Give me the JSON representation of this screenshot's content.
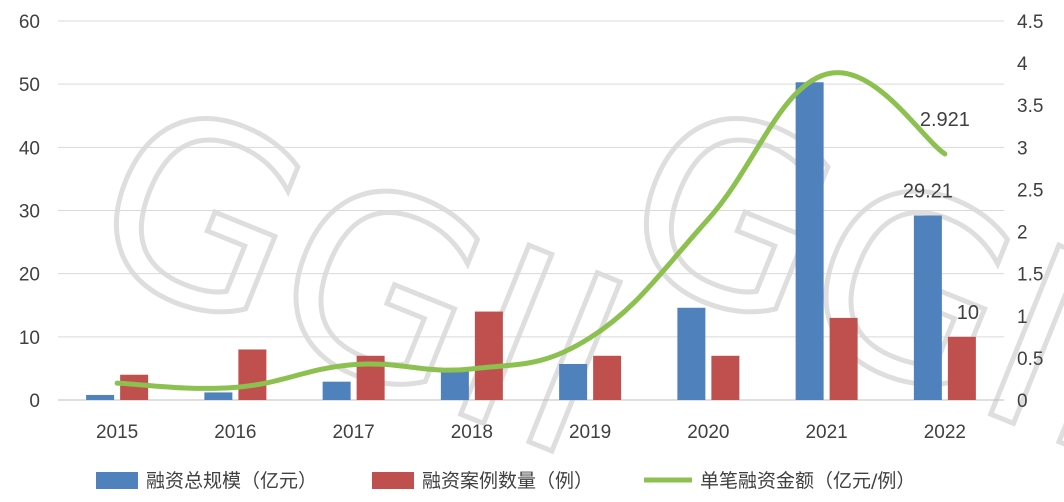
{
  "watermark": "GGII",
  "chart_data": {
    "type": "bar",
    "categories": [
      "2015",
      "2016",
      "2017",
      "2018",
      "2019",
      "2020",
      "2021",
      "2022"
    ],
    "series": [
      {
        "name": "融资总规模（亿元）",
        "type": "bar",
        "axis": "left",
        "color": "#4f81bd",
        "values": [
          0.8,
          1.2,
          2.9,
          4.7,
          5.7,
          14.6,
          50.3,
          29.21
        ]
      },
      {
        "name": "融资案例数量（例）",
        "type": "bar",
        "axis": "left",
        "color": "#c0504d",
        "values": [
          4,
          8,
          7,
          14,
          7,
          7,
          13,
          10
        ]
      },
      {
        "name": "单笔融资金额（亿元/例）",
        "type": "line",
        "axis": "right",
        "color": "#8cc04f",
        "values": [
          0.2,
          0.15,
          0.42,
          0.37,
          0.74,
          2.15,
          3.87,
          2.921
        ]
      }
    ],
    "data_labels": [
      {
        "series": 0,
        "index": 7,
        "text": "29.21"
      },
      {
        "series": 1,
        "index": 7,
        "text": "10"
      },
      {
        "series": 2,
        "index": 7,
        "text": "2.921"
      }
    ],
    "y_left": {
      "min": 0,
      "max": 60,
      "step": 10,
      "ticks": [
        "0",
        "10",
        "20",
        "30",
        "40",
        "50",
        "60"
      ]
    },
    "y_right": {
      "min": 0,
      "max": 4.5,
      "step": 0.5,
      "ticks": [
        "0",
        "0.5",
        "1",
        "1.5",
        "2",
        "2.5",
        "3",
        "3.5",
        "4",
        "4.5"
      ]
    },
    "grid": true,
    "legend_position": "bottom",
    "title": "",
    "xlabel": "",
    "ylabel": ""
  }
}
